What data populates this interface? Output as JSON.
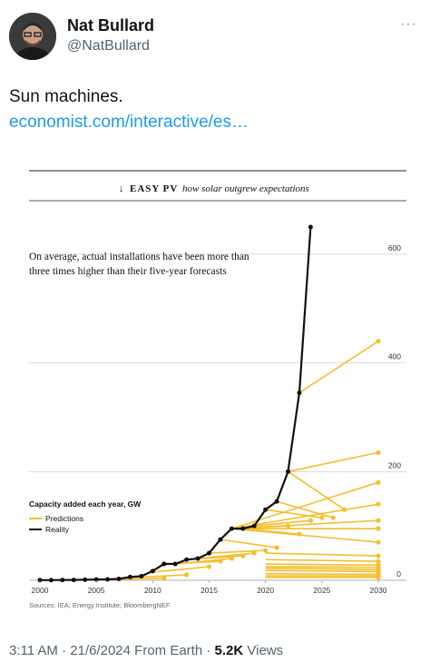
{
  "tweet": {
    "author_name": "Nat Bullard",
    "author_handle": "@NatBullard",
    "more_icon": "more-dots-icon",
    "text": "Sun machines.",
    "link_text": "economist.com/interactive/es…",
    "time": "3:11 AM",
    "date": "21/6/2024",
    "source": "From Earth",
    "views_count": "5.2K",
    "views_label": "Views",
    "separator": "·"
  },
  "chart_header": {
    "arrow": "↓",
    "section": "EASY PV",
    "subtitle": "how solar outgrew expectations"
  },
  "chart_data": {
    "type": "line",
    "annotation_line1": "On average, actual installations have been more than",
    "annotation_line2": "three times higher than their five-year forecasts",
    "ylabel": "Capacity added each year, GW",
    "xlim": [
      2000,
      2030
    ],
    "ylim": [
      0,
      650
    ],
    "x_ticks": [
      2000,
      2005,
      2010,
      2015,
      2020,
      2025,
      2030
    ],
    "y_ticks": [
      0,
      200,
      400,
      600
    ],
    "grid": true,
    "legend_position": "left-middle",
    "source": "Sources: IEA; Energy Institute; BloombergNEF",
    "colors": {
      "reality": "#111111",
      "predictions": "#f5be2e",
      "grid": "#d4d4d4"
    },
    "series": [
      {
        "name": "Reality",
        "x": [
          2000,
          2001,
          2002,
          2003,
          2004,
          2005,
          2006,
          2007,
          2008,
          2009,
          2010,
          2011,
          2012,
          2013,
          2014,
          2015,
          2016,
          2017,
          2018,
          2019,
          2020,
          2021,
          2022,
          2023,
          2024
        ],
        "y": [
          0.3,
          0.3,
          0.5,
          0.6,
          1.1,
          1.4,
          1.6,
          2.5,
          6,
          7.5,
          17,
          30,
          30,
          38,
          40,
          50,
          75,
          95,
          95,
          100,
          130,
          145,
          200,
          345,
          650
        ]
      },
      {
        "name": "Predictions",
        "forecasts": [
          {
            "x": [
              2006,
              2011
            ],
            "y": [
              1,
              4
            ]
          },
          {
            "x": [
              2008,
              2013
            ],
            "y": [
              5,
              10
            ]
          },
          {
            "x": [
              2010,
              2015
            ],
            "y": [
              15,
              25
            ]
          },
          {
            "x": [
              2011,
              2016
            ],
            "y": [
              30,
              35
            ]
          },
          {
            "x": [
              2012,
              2017
            ],
            "y": [
              30,
              40
            ]
          },
          {
            "x": [
              2013,
              2018
            ],
            "y": [
              38,
              45
            ]
          },
          {
            "x": [
              2014,
              2019
            ],
            "y": [
              40,
              50
            ]
          },
          {
            "x": [
              2015,
              2020
            ],
            "y": [
              50,
              55
            ]
          },
          {
            "x": [
              2016,
              2021
            ],
            "y": [
              75,
              60
            ]
          },
          {
            "x": [
              2017,
              2022
            ],
            "y": [
              95,
              100
            ]
          },
          {
            "x": [
              2018,
              2023
            ],
            "y": [
              95,
              85
            ]
          },
          {
            "x": [
              2019,
              2024
            ],
            "y": [
              100,
              110
            ]
          },
          {
            "x": [
              2020,
              2025
            ],
            "y": [
              130,
              115
            ]
          },
          {
            "x": [
              2021,
              2026
            ],
            "y": [
              145,
              115
            ]
          },
          {
            "x": [
              2022,
              2027
            ],
            "y": [
              200,
              130
            ]
          },
          {
            "x": [
              2017,
              2030
            ],
            "y": [
              95,
              180
            ]
          },
          {
            "x": [
              2017,
              2030
            ],
            "y": [
              95,
              140
            ]
          },
          {
            "x": [
              2017,
              2030
            ],
            "y": [
              95,
              110
            ]
          },
          {
            "x": [
              2017,
              2030
            ],
            "y": [
              95,
              95
            ]
          },
          {
            "x": [
              2017,
              2030
            ],
            "y": [
              95,
              70
            ]
          },
          {
            "x": [
              2020,
              2030
            ],
            "y": [
              50,
              45
            ]
          },
          {
            "x": [
              2020,
              2030
            ],
            "y": [
              38,
              35
            ]
          },
          {
            "x": [
              2020,
              2030
            ],
            "y": [
              30,
              28
            ]
          },
          {
            "x": [
              2020,
              2030
            ],
            "y": [
              25,
              24
            ]
          },
          {
            "x": [
              2020,
              2030
            ],
            "y": [
              22,
              20
            ]
          },
          {
            "x": [
              2020,
              2030
            ],
            "y": [
              18,
              16
            ]
          },
          {
            "x": [
              2020,
              2030
            ],
            "y": [
              12,
              11
            ]
          },
          {
            "x": [
              2020,
              2030
            ],
            "y": [
              8,
              8
            ]
          },
          {
            "x": [
              2020,
              2030
            ],
            "y": [
              5,
              5
            ]
          },
          {
            "x": [
              2022,
              2030
            ],
            "y": [
              200,
              235
            ]
          },
          {
            "x": [
              2023,
              2030
            ],
            "y": [
              345,
              440
            ]
          }
        ]
      }
    ]
  }
}
